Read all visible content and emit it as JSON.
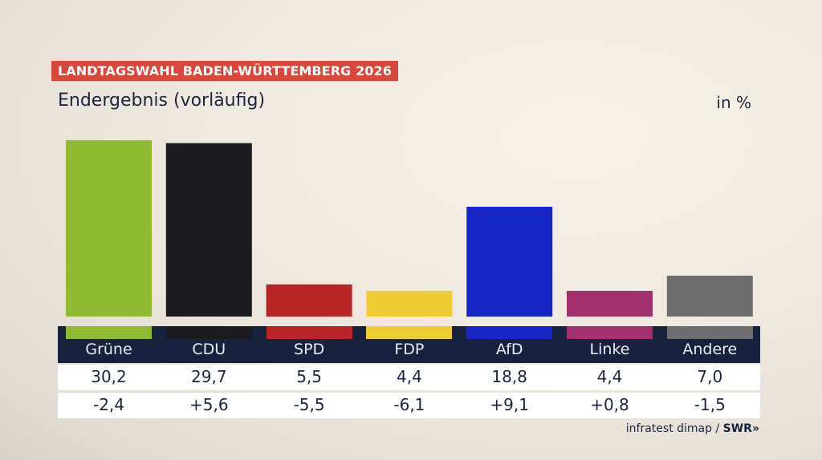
{
  "header": {
    "badge": "LANDTAGSWAHL BADEN-WÜRTTEMBERG 2026",
    "subtitle": "Endergebnis (vorläufig)",
    "unit": "in %"
  },
  "source": {
    "text": "infratest dimap / ",
    "brand": "SWR",
    "brand_icon": "double-chevron-right-icon"
  },
  "chart_data": {
    "type": "bar",
    "title": "LANDTAGSWAHL BADEN-WÜRTTEMBERG 2026",
    "subtitle": "Endergebnis (vorläufig)",
    "ylabel": "in %",
    "xlabel": "",
    "ylim": [
      0,
      30.2
    ],
    "grid": false,
    "categories": [
      "Grüne",
      "CDU",
      "SPD",
      "FDP",
      "AfD",
      "Linke",
      "Andere"
    ],
    "values": [
      30.2,
      29.7,
      5.5,
      4.4,
      18.8,
      4.4,
      7.0
    ],
    "value_labels": [
      "30,2",
      "29,7",
      "5,5",
      "4,4",
      "18,8",
      "4,4",
      "7,0"
    ],
    "changes": [
      -2.4,
      5.6,
      -5.5,
      -6.1,
      9.1,
      0.8,
      -1.5
    ],
    "change_labels": [
      "-2,4",
      "+5,6",
      "-5,5",
      "-6,1",
      "+9,1",
      "+0,8",
      "-1,5"
    ],
    "colors": [
      "#8fbb33",
      "#1c1c1e",
      "#b72525",
      "#efcc34",
      "#1427c4",
      "#a2306f",
      "#6e6e6e"
    ]
  }
}
